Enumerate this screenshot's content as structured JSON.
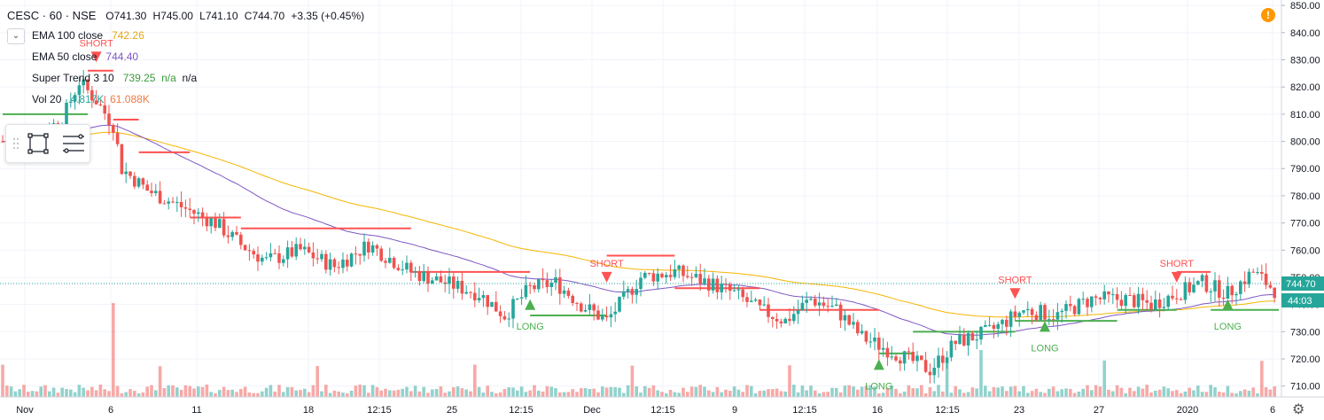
{
  "header": {
    "symbol": "CESC · 60 · NSE",
    "open": "O741.30",
    "high": "H745.00",
    "low": "L741.10",
    "close": "C744.70",
    "change": "+3.35 (+0.45%)"
  },
  "indicators": {
    "ema100_label": "EMA 100 close",
    "ema100_value": "742.26",
    "ema50_label": "EMA 50 close",
    "ema50_value": "744.40",
    "st_label": "Super Trend 3 10",
    "st_value": "739.25",
    "st_na1": "n/a",
    "st_na2": "n/a",
    "vol_label": "Vol 20",
    "vol_value1": "4.817K",
    "vol_value2": "61.088K"
  },
  "icons": {
    "collapse": "chevron-down-icon",
    "rect": "rectangle-tool-icon",
    "lines": "lines-tool-icon",
    "alert": "alert-icon",
    "settings": "gear-icon"
  },
  "colors": {
    "up": "#26a69a",
    "down": "#ef5350",
    "ema100": "#f7b500",
    "ema50": "#7e57c2",
    "st_up": "#4caf50",
    "st_down": "#ff5252"
  },
  "price_label": "744.70",
  "countdown_label": "44:03",
  "chart_data": {
    "type": "candlestick",
    "y_axis_ticks": [
      850,
      840,
      830,
      820,
      810,
      800,
      790,
      780,
      770,
      760,
      750,
      740,
      730,
      720,
      710
    ],
    "ylim": [
      706,
      852
    ],
    "x_axis_labels": [
      "Nov",
      "6",
      "11",
      "18",
      "12:15",
      "25",
      "12:15",
      "Dec",
      "12:15",
      "9",
      "12:15",
      "16",
      "12:15",
      "23",
      "27",
      "2020",
      "6"
    ],
    "last_price": 744.7,
    "signals": [
      {
        "type": "SHORT",
        "price": 833
      },
      {
        "type": "LONG",
        "price": 738
      },
      {
        "type": "SHORT",
        "price": 752
      },
      {
        "type": "LONG",
        "price": 716
      },
      {
        "type": "SHORT",
        "price": 746
      },
      {
        "type": "LONG",
        "price": 730
      },
      {
        "type": "SHORT",
        "price": 752
      },
      {
        "type": "LONG",
        "price": 738
      }
    ],
    "signal_labels": {
      "short": "SHORT",
      "long": "LONG"
    }
  }
}
